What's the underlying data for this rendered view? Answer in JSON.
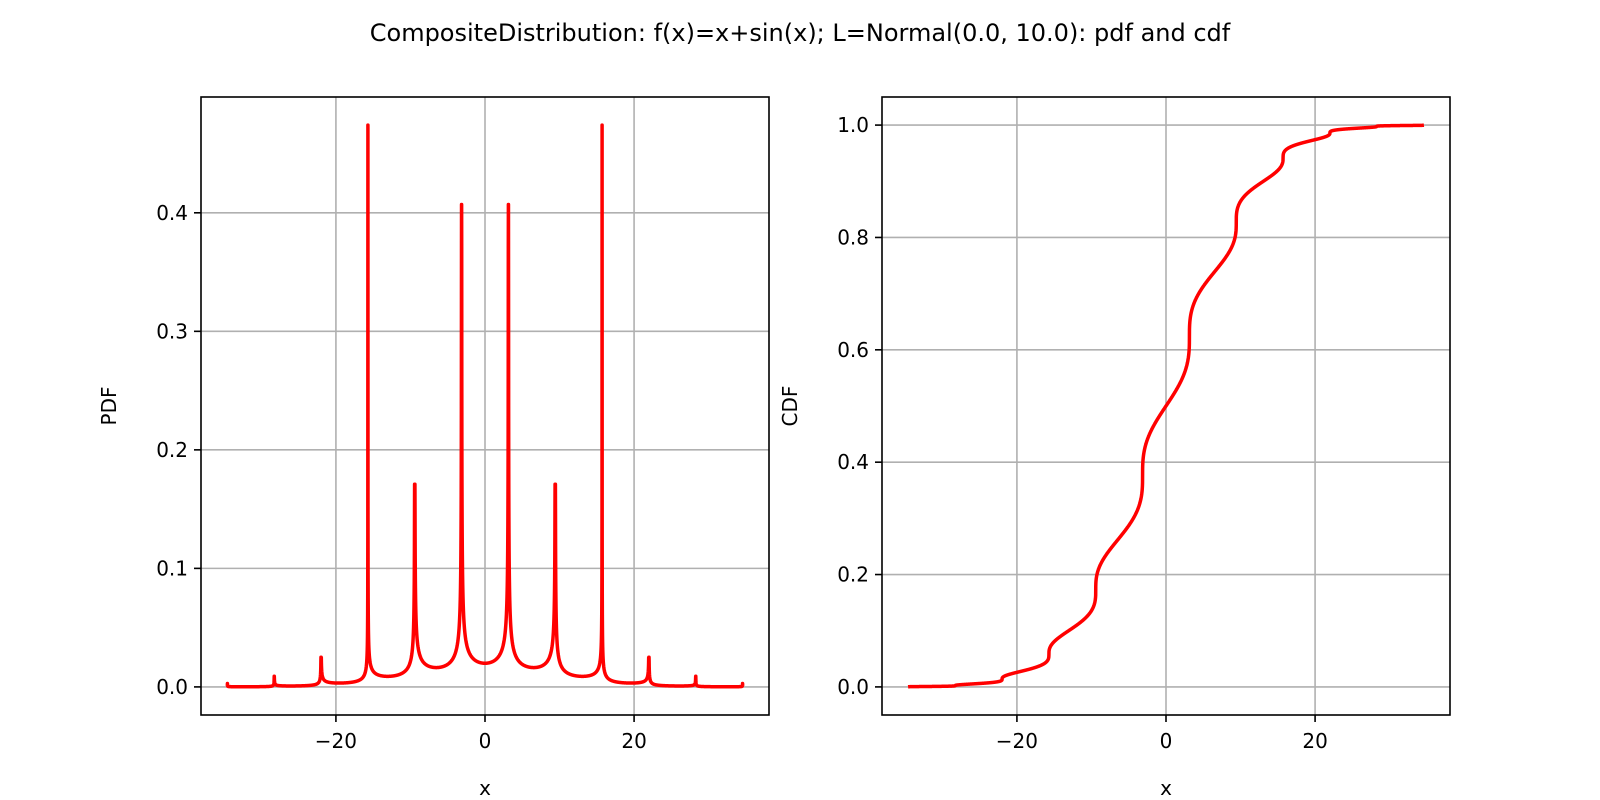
{
  "figure": {
    "title": "CompositeDistribution: f(x)=x+sin(x); L=Normal(0.0, 10.0): pdf and cdf"
  },
  "chart_data": [
    {
      "type": "line",
      "id": "pdf",
      "xlabel": "x",
      "ylabel": "PDF",
      "xlim": [
        -38.1,
        38.1
      ],
      "ylim": [
        -0.0237,
        0.4977
      ],
      "xticks": [
        -20,
        0,
        20
      ],
      "xtick_labels": [
        "−20",
        "0",
        "20"
      ],
      "yticks": [
        0.0,
        0.1,
        0.2,
        0.3,
        0.4
      ],
      "ytick_labels": [
        "0.0",
        "0.1",
        "0.2",
        "0.3",
        "0.4"
      ],
      "grid": true,
      "series": [
        {
          "color": "#ff0000",
          "function": "pdf of Y = X + sin(X), X ~ Normal(0, 10)",
          "x_range": [
            -34.6,
            34.6
          ],
          "peaks": [
            {
              "x": -28.27,
              "y": 0.009
            },
            {
              "x": -21.99,
              "y": 0.025
            },
            {
              "x": -15.71,
              "y": 0.474
            },
            {
              "x": -9.42,
              "y": 0.171
            },
            {
              "x": -3.14,
              "y": 0.407
            },
            {
              "x": 3.14,
              "y": 0.407
            },
            {
              "x": 9.42,
              "y": 0.171
            },
            {
              "x": 15.71,
              "y": 0.474
            },
            {
              "x": 21.99,
              "y": 0.025
            },
            {
              "x": 28.27,
              "y": 0.009
            }
          ]
        }
      ]
    },
    {
      "type": "line",
      "id": "cdf",
      "xlabel": "x",
      "ylabel": "CDF",
      "xlim": [
        -38.1,
        38.1
      ],
      "ylim": [
        -0.05,
        1.05
      ],
      "xticks": [
        -20,
        0,
        20
      ],
      "xtick_labels": [
        "−20",
        "0",
        "20"
      ],
      "yticks": [
        0.0,
        0.2,
        0.4,
        0.6,
        0.8,
        1.0
      ],
      "ytick_labels": [
        "0.0",
        "0.2",
        "0.4",
        "0.6",
        "0.8",
        "1.0"
      ],
      "grid": true,
      "series": [
        {
          "color": "#ff0000",
          "function": "cdf of Y = X + sin(X), X ~ Normal(0, 10)",
          "x_range": [
            -34.6,
            34.6
          ],
          "points": [
            {
              "x": -34.6,
              "y": 0.0
            },
            {
              "x": -22,
              "y": 0.013
            },
            {
              "x": -15.7,
              "y": 0.06
            },
            {
              "x": -9.4,
              "y": 0.2
            },
            {
              "x": -3.1,
              "y": 0.38
            },
            {
              "x": 0,
              "y": 0.5
            },
            {
              "x": 3.1,
              "y": 0.62
            },
            {
              "x": 9.4,
              "y": 0.8
            },
            {
              "x": 15.7,
              "y": 0.94
            },
            {
              "x": 22,
              "y": 0.987
            },
            {
              "x": 34.6,
              "y": 1.0
            }
          ]
        }
      ]
    }
  ]
}
